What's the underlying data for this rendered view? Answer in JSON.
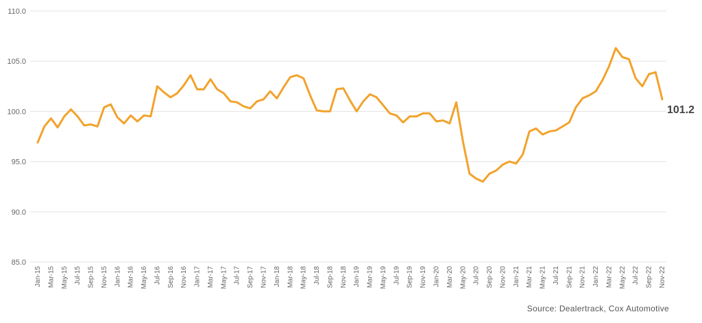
{
  "chart_data": {
    "type": "line",
    "yticks": [
      "85.0",
      "90.0",
      "95.0",
      "100.0",
      "105.0",
      "110.0"
    ],
    "ylim": [
      85,
      110
    ],
    "grid": true,
    "line_color": "#F2A22B",
    "end_label": "101.2",
    "xtick_labels": [
      "Jan-15",
      "Mar-15",
      "May-15",
      "Jul-15",
      "Sep-15",
      "Nov-15",
      "Jan-16",
      "Mar-16",
      "May-16",
      "Jul-16",
      "Sep-16",
      "Nov-16",
      "Jan-17",
      "Mar-17",
      "May-17",
      "Jul-17",
      "Sep-17",
      "Nov-17",
      "Jan-18",
      "Mar-18",
      "May-18",
      "Jul-18",
      "Sep-18",
      "Nov-18",
      "Jan-19",
      "Mar-19",
      "May-19",
      "Jul-19",
      "Sep-19",
      "Nov-19",
      "Jan-20",
      "Mar-20",
      "May-20",
      "Jul-20",
      "Sep-20",
      "Nov-20",
      "Jan-21",
      "Mar-21",
      "May-21",
      "Jul-21",
      "Sep-21",
      "Nov-21",
      "Jan-22",
      "Mar-22",
      "May-22",
      "Jul-22",
      "Sep-22",
      "Nov-22"
    ],
    "series": [
      {
        "values": [
          96.9,
          98.5,
          99.3,
          98.4,
          99.5,
          100.2,
          99.5,
          98.6,
          98.7,
          98.5,
          100.4,
          100.7,
          99.4,
          98.8,
          99.6,
          99.0,
          99.6,
          99.5,
          102.5,
          101.9,
          101.4,
          101.8,
          102.6,
          103.6,
          102.2,
          102.2,
          103.2,
          102.2,
          101.8,
          101.0,
          100.9,
          100.5,
          100.3,
          101.0,
          101.2,
          102.0,
          101.3,
          102.4,
          103.4,
          103.6,
          103.3,
          101.6,
          100.1,
          100.0,
          100.0,
          102.2,
          102.3,
          101.1,
          100.0,
          101.0,
          101.7,
          101.4,
          100.6,
          99.8,
          99.6,
          98.9,
          99.5,
          99.5,
          99.8,
          99.8,
          99.0,
          99.1,
          98.8,
          100.9,
          97.0,
          93.8,
          93.3,
          93.0,
          93.8,
          94.1,
          94.7,
          95.0,
          94.8,
          95.7,
          98.0,
          98.3,
          97.7,
          98.0,
          98.1,
          98.5,
          98.9,
          100.4,
          101.3,
          101.6,
          102.0,
          103.1,
          104.5,
          106.3,
          105.4,
          105.2,
          103.3,
          102.5,
          103.7,
          103.9,
          101.2
        ]
      }
    ]
  },
  "source_text": "Source: Dealertrack, Cox Automotive"
}
